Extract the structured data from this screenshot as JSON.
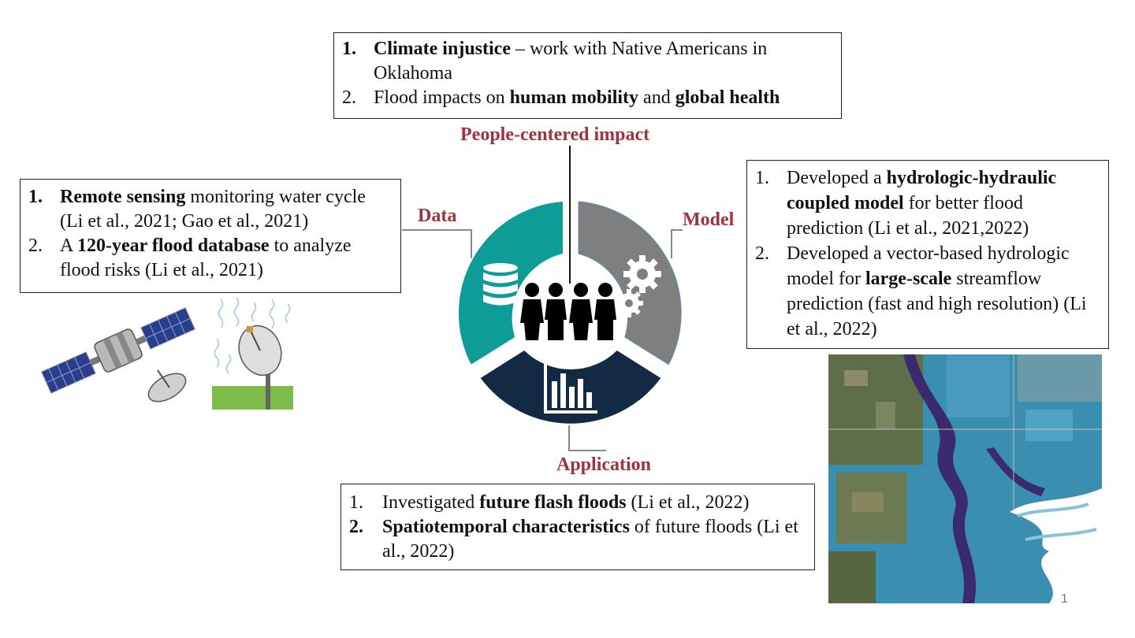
{
  "labels": {
    "people": "People-centered impact",
    "data": "Data",
    "model": "Model",
    "application": "Application"
  },
  "top_box": {
    "item1": {
      "num": "1.",
      "bold": "Climate injustice",
      "rest": " – work with Native Americans in Oklahoma"
    },
    "item2": {
      "num": "2.",
      "pre": "Flood impacts on ",
      "bold1": "human mobility",
      "mid": " and ",
      "bold2": "global health"
    }
  },
  "data_box": {
    "item1": {
      "num": "1.",
      "bold": "Remote sensing",
      "rest": " monitoring water cycle (Li et al., 2021; Gao et al., 2021)"
    },
    "item2": {
      "num": "2.",
      "pre": "A ",
      "bold": "120-year flood database",
      "rest": " to analyze flood risks (Li et al., 2021)"
    }
  },
  "model_box": {
    "item1": {
      "num": "1.",
      "pre": "Developed a ",
      "bold": "hydrologic-hydraulic coupled model",
      "rest": " for better flood prediction (Li et al., 2021,2022)"
    },
    "item2": {
      "num": "2.",
      "pre": "Developed a vector-based hydrologic model for ",
      "bold": "large-scale",
      "rest": " streamflow prediction (fast and high resolution) (Li et al., 2022)"
    }
  },
  "application_box": {
    "item1": {
      "num": "1.",
      "pre": "Investigated ",
      "bold": "future flash floods",
      "rest": " (Li et al., 2022)"
    },
    "item2": {
      "num": "2.",
      "bold": "Spatiotemporal characteristics",
      "rest": " of future floods (Li et al., 2022)"
    }
  },
  "page_number": "1",
  "colors": {
    "data_segment": "#0e9c99",
    "model_segment": "#7f7f7f",
    "application_segment": "#132a45",
    "label_red": "#a2303d"
  },
  "icons": [
    "database-icon",
    "people-icon",
    "gears-icon",
    "bar-chart-icon",
    "satellite-icon",
    "radar-dish-icon",
    "flood-map-image"
  ]
}
